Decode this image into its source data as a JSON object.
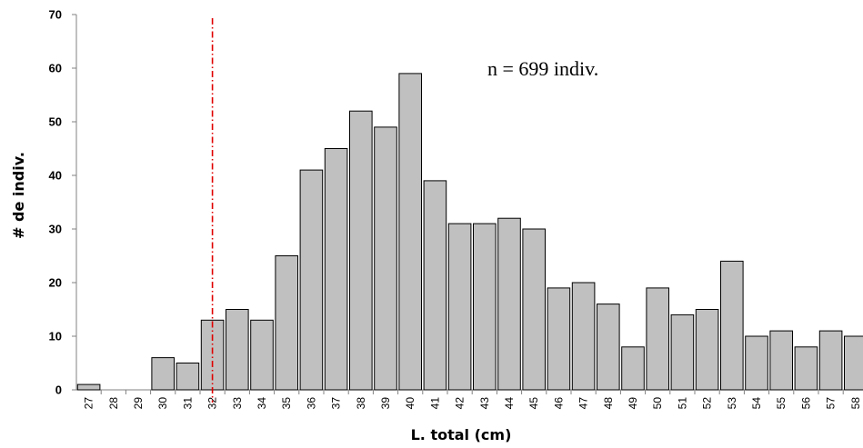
{
  "chart_data": {
    "type": "bar",
    "categories": [
      "27",
      "28",
      "29",
      "30",
      "31",
      "32",
      "33",
      "34",
      "35",
      "36",
      "37",
      "38",
      "39",
      "40",
      "41",
      "42",
      "43",
      "44",
      "45",
      "46",
      "47",
      "48",
      "49",
      "50",
      "51",
      "52",
      "53",
      "54",
      "55",
      "56",
      "57",
      "58"
    ],
    "values": [
      1,
      0,
      0,
      6,
      5,
      13,
      15,
      13,
      25,
      41,
      45,
      52,
      49,
      59,
      39,
      31,
      31,
      32,
      30,
      19,
      20,
      16,
      8,
      19,
      14,
      15,
      24,
      10,
      11,
      8,
      11,
      10
    ],
    "title": "",
    "xlabel": "L. total (cm)",
    "ylabel": "# de indiv.",
    "ylim": [
      0,
      70
    ],
    "yticks": [
      0,
      10,
      20,
      30,
      40,
      50,
      60,
      70
    ],
    "annotation": "n = 699 indiv.",
    "reference_line_x": "32",
    "grid": false,
    "colors": {
      "bar_fill": "#c0c0c0",
      "bar_stroke": "#000000",
      "reference_line": "#e00000",
      "axis": "#808080"
    }
  }
}
